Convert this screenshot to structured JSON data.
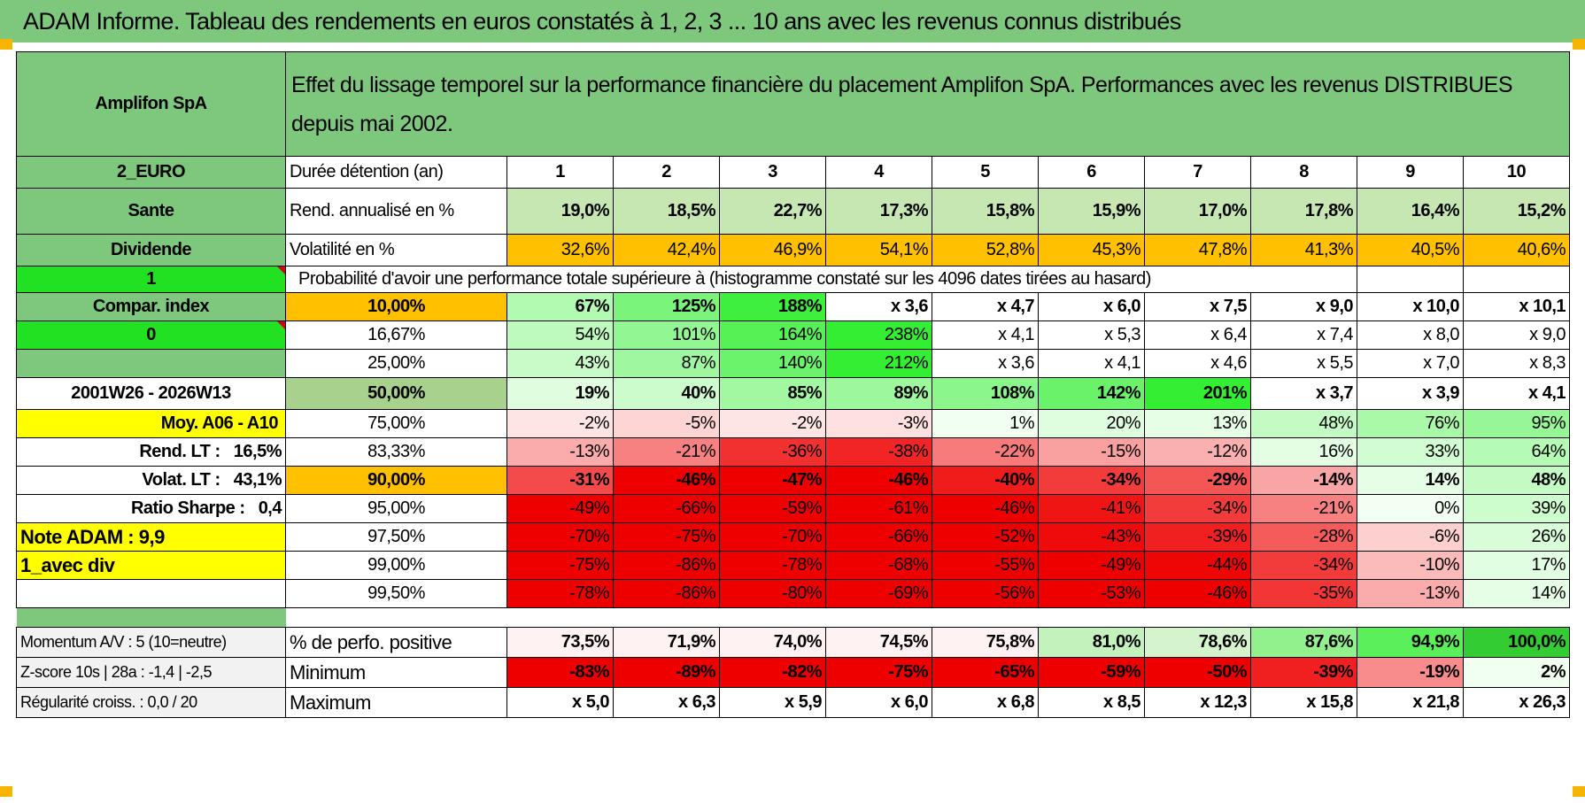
{
  "title": "ADAM Informe. Tableau des rendements en euros constatés à 1, 2, 3 ... 10 ans avec les revenus connus distribués",
  "header": {
    "company": "Amplifon SpA",
    "description": "Effet du lissage temporel sur la performance financière du placement Amplifon SpA. Performances avec les revenus DISTRIBUES depuis mai 2002."
  },
  "side": {
    "currency": "2_EURO",
    "sector": "Sante",
    "type": "Dividende",
    "val1": "1",
    "compar": "Compar. index",
    "val0": "0",
    "period": "2001W26 - 2026W13",
    "moy": "Moy. A06 - A10",
    "rend_lt_label": "Rend. LT :",
    "rend_lt_value": "16,5%",
    "volat_lt_label": "Volat. LT :",
    "volat_lt_value": "43,1%",
    "sharpe_label": "Ratio Sharpe :",
    "sharpe_value": "0,4",
    "note": "Note ADAM : 9,9",
    "avec_div": "1_avec div"
  },
  "labels": {
    "duree": "Durée détention (an)",
    "rend": "Rend. annualisé en %",
    "vol": "Volatilité en %",
    "proba": "Probabilité d'avoir une performance totale supérieure à (histogramme constaté sur les 4096 dates tirées au hasard)"
  },
  "years": [
    "1",
    "2",
    "3",
    "4",
    "5",
    "6",
    "7",
    "8",
    "9",
    "10"
  ],
  "rendement": [
    "19,0%",
    "18,5%",
    "22,7%",
    "17,3%",
    "15,8%",
    "15,9%",
    "17,0%",
    "17,8%",
    "16,4%",
    "15,2%"
  ],
  "volatilite": [
    "32,6%",
    "42,4%",
    "46,9%",
    "54,1%",
    "52,8%",
    "45,3%",
    "47,8%",
    "41,3%",
    "40,5%",
    "40,6%"
  ],
  "prob_rows": [
    {
      "p": "10,00%",
      "v": [
        "67%",
        "125%",
        "188%",
        "x 3,6",
        "x 4,7",
        "x 6,0",
        "x 7,5",
        "x 9,0",
        "x 10,0",
        "x 10,1"
      ]
    },
    {
      "p": "16,67%",
      "v": [
        "54%",
        "101%",
        "164%",
        "238%",
        "x 4,1",
        "x 5,3",
        "x 6,4",
        "x 7,4",
        "x 8,0",
        "x 9,0"
      ]
    },
    {
      "p": "25,00%",
      "v": [
        "43%",
        "87%",
        "140%",
        "212%",
        "x 3,6",
        "x 4,1",
        "x 4,6",
        "x 5,5",
        "x 7,0",
        "x 8,3"
      ]
    },
    {
      "p": "50,00%",
      "v": [
        "19%",
        "40%",
        "85%",
        "89%",
        "108%",
        "142%",
        "201%",
        "x 3,7",
        "x 3,9",
        "x 4,1"
      ]
    },
    {
      "p": "75,00%",
      "v": [
        "-2%",
        "-5%",
        "-2%",
        "-3%",
        "1%",
        "20%",
        "13%",
        "48%",
        "76%",
        "95%"
      ]
    },
    {
      "p": "83,33%",
      "v": [
        "-13%",
        "-21%",
        "-36%",
        "-38%",
        "-22%",
        "-15%",
        "-12%",
        "16%",
        "33%",
        "64%"
      ]
    },
    {
      "p": "90,00%",
      "v": [
        "-31%",
        "-46%",
        "-47%",
        "-46%",
        "-40%",
        "-34%",
        "-29%",
        "-14%",
        "14%",
        "48%"
      ]
    },
    {
      "p": "95,00%",
      "v": [
        "-49%",
        "-66%",
        "-59%",
        "-61%",
        "-46%",
        "-41%",
        "-34%",
        "-21%",
        "0%",
        "39%"
      ]
    },
    {
      "p": "97,50%",
      "v": [
        "-70%",
        "-75%",
        "-70%",
        "-66%",
        "-52%",
        "-43%",
        "-39%",
        "-28%",
        "-6%",
        "26%"
      ]
    },
    {
      "p": "99,00%",
      "v": [
        "-75%",
        "-86%",
        "-78%",
        "-68%",
        "-55%",
        "-49%",
        "-44%",
        "-34%",
        "-10%",
        "17%"
      ]
    },
    {
      "p": "99,50%",
      "v": [
        "-78%",
        "-86%",
        "-80%",
        "-69%",
        "-56%",
        "-53%",
        "-46%",
        "-35%",
        "-13%",
        "14%"
      ]
    }
  ],
  "bottom": {
    "momentum": "Momentum A/V : 5 (10=neutre)",
    "zscore": "Z-score 10s | 28a : -1,4 | -2,5",
    "regularite": "Régularité croiss. : 0,0 / 20",
    "pos_label": "% de perfo. positive",
    "min_label": "Minimum",
    "max_label": "Maximum",
    "pos": [
      "73,5%",
      "71,9%",
      "74,0%",
      "74,5%",
      "75,8%",
      "81,0%",
      "78,6%",
      "87,6%",
      "94,9%",
      "100,0%"
    ],
    "min": [
      "-83%",
      "-89%",
      "-82%",
      "-75%",
      "-65%",
      "-59%",
      "-50%",
      "-39%",
      "-19%",
      "2%"
    ],
    "max": [
      "x 5,0",
      "x 6,3",
      "x 5,9",
      "x 6,0",
      "x 6,8",
      "x 8,5",
      "x 12,3",
      "x 15,8",
      "x 21,8",
      "x 26,3"
    ]
  },
  "colors": {
    "header_green": "#7ec87e",
    "bright_green": "#22e022",
    "yellow": "#ffff00",
    "orange": "#ffc000",
    "label_red": "#d0001e"
  }
}
